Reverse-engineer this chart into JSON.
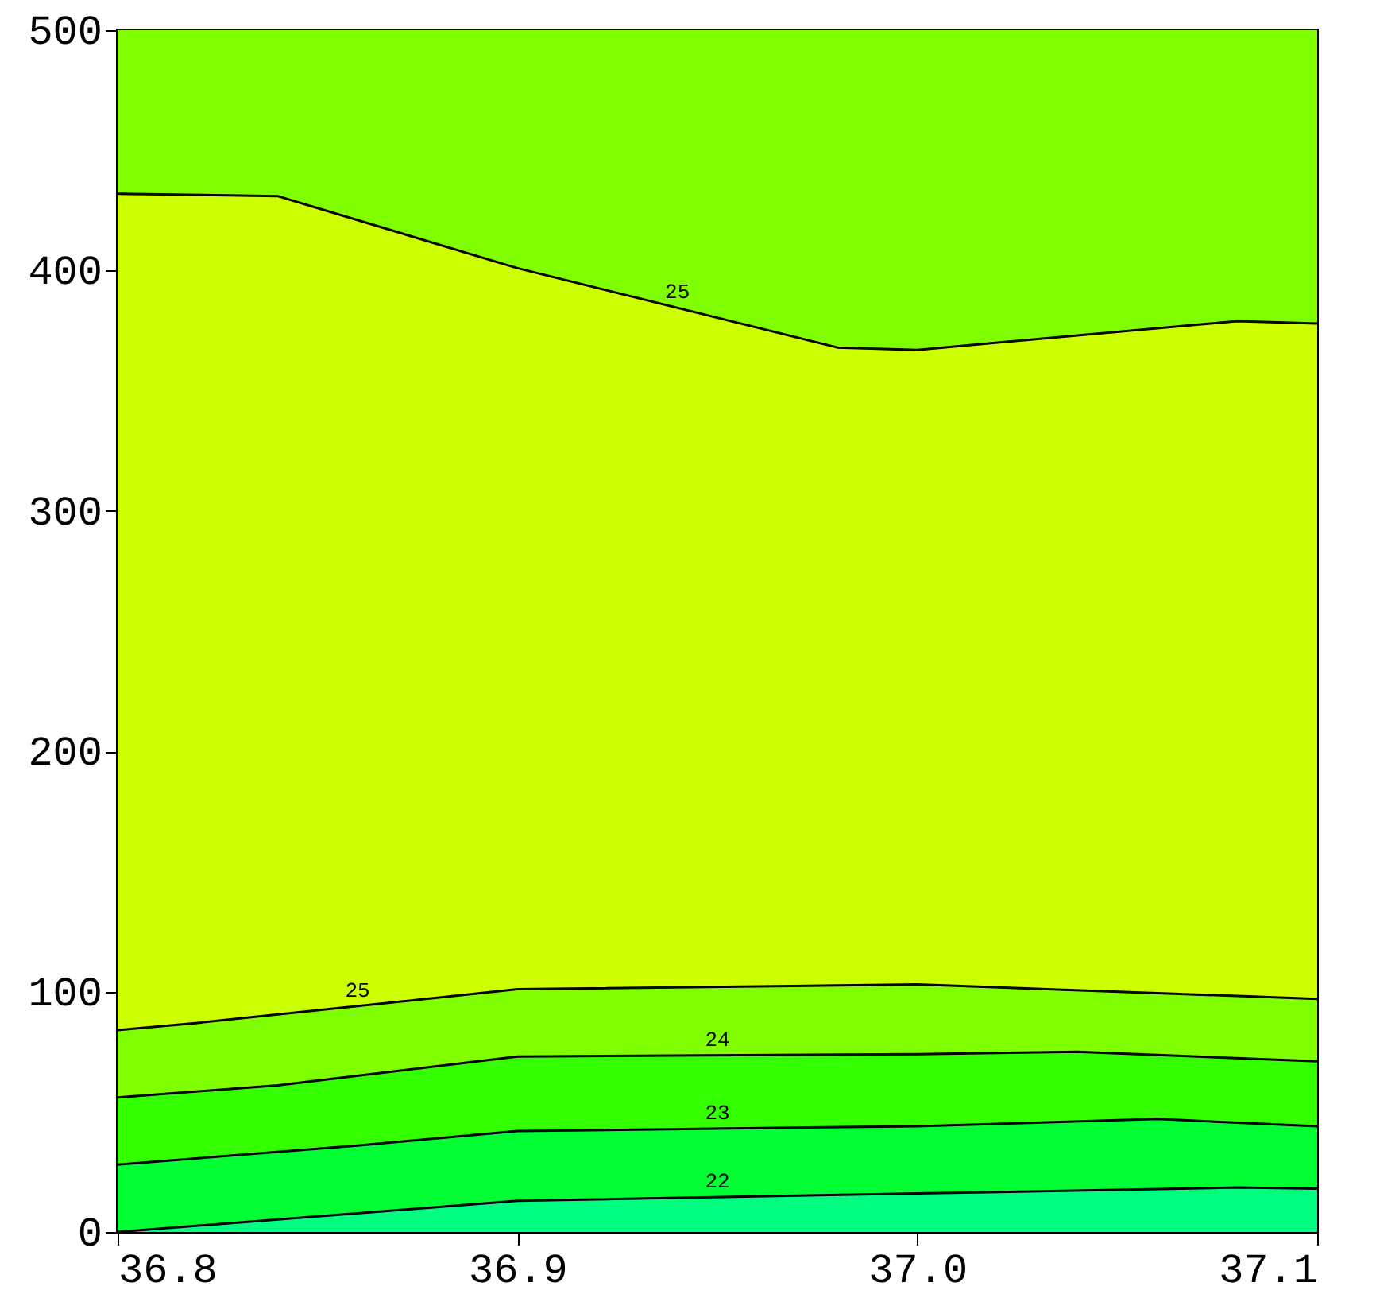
{
  "chart_data": {
    "type": "area",
    "xlim": [
      36.8,
      37.1
    ],
    "ylim": [
      0,
      500
    ],
    "xticks": [
      36.8,
      36.9,
      {
        "value": 37.0,
        "label": "37.0"
      },
      37.1
    ],
    "yticks": [
      0,
      100,
      200,
      300,
      400,
      500
    ],
    "bands": [
      {
        "axis": "y",
        "from": 367,
        "to": 500,
        "color": "#80ff00"
      }
    ],
    "series": [
      {
        "name": "25",
        "color": "#ccff00",
        "x": [
          36.8,
          36.84,
          36.9,
          36.98,
          37.0,
          37.08,
          37.1
        ],
        "values": [
          432,
          431,
          401,
          368,
          367,
          379,
          378
        ]
      },
      {
        "name": "25",
        "color": "#80ff00",
        "x": [
          36.8,
          36.82,
          36.9,
          37.0,
          37.1
        ],
        "values": [
          84,
          87,
          101,
          103,
          97
        ]
      },
      {
        "name": "24",
        "color": "#33ff00",
        "x": [
          36.8,
          36.84,
          36.9,
          37.0,
          37.04,
          37.1
        ],
        "values": [
          56,
          61,
          73,
          74,
          75,
          71
        ]
      },
      {
        "name": "23",
        "color": "#00ff33",
        "x": [
          36.8,
          36.86,
          36.9,
          37.0,
          37.06,
          37.1
        ],
        "values": [
          28,
          36,
          42,
          44,
          47,
          44
        ]
      },
      {
        "name": "22",
        "color": "#00ff80",
        "x": [
          36.8,
          36.9,
          37.0,
          37.08,
          37.1
        ],
        "values": [
          0,
          13,
          16,
          18.5,
          18
        ]
      }
    ]
  }
}
